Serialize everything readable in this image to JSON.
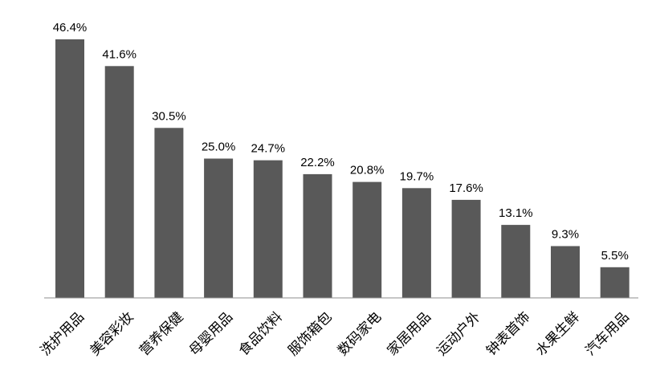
{
  "chart_data": {
    "type": "bar",
    "categories": [
      "洗护用品",
      "美容彩妆",
      "营养保健",
      "母婴用品",
      "食品饮料",
      "服饰箱包",
      "数码家电",
      "家居用品",
      "运动户外",
      "钟表首饰",
      "水果生鲜",
      "汽车用品"
    ],
    "values": [
      46.4,
      41.6,
      30.5,
      25.0,
      24.7,
      22.2,
      20.8,
      19.7,
      17.6,
      13.1,
      9.3,
      5.5
    ],
    "value_labels": [
      "46.4%",
      "41.6%",
      "30.5%",
      "25.0%",
      "24.7%",
      "22.2%",
      "20.8%",
      "19.7%",
      "17.6%",
      "13.1%",
      "9.3%",
      "5.5%"
    ],
    "title": "",
    "xlabel": "",
    "ylabel": "",
    "ylim": [
      0,
      50
    ],
    "grid": false,
    "legend": "none",
    "colors": {
      "bar": "#595959",
      "axis": "#8c8c8c"
    }
  }
}
